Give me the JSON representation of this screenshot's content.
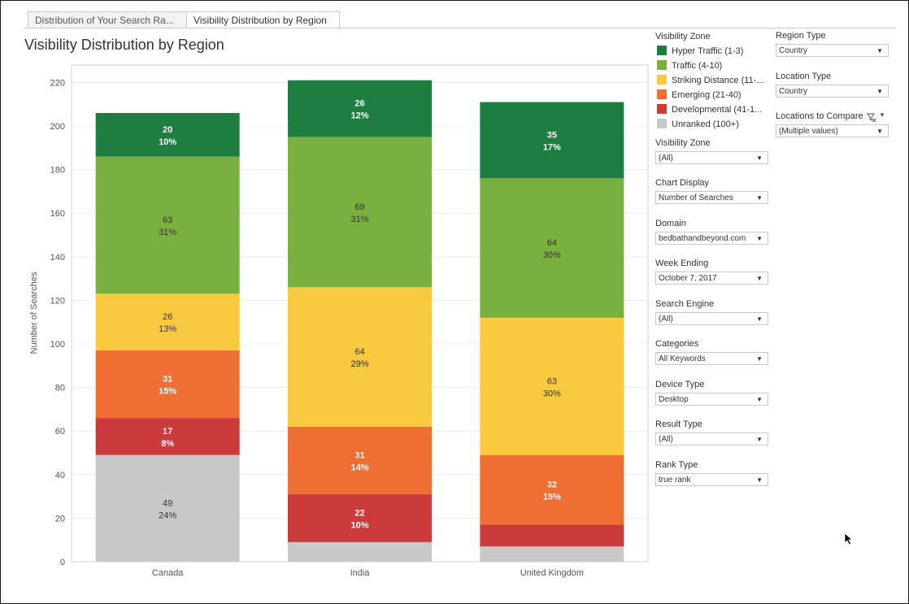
{
  "tabs": [
    {
      "label": "Distribution of Your Search Ra..."
    },
    {
      "label": "Visibility Distribution by Region"
    }
  ],
  "chart_title": "Visibility Distribution by Region",
  "legend": {
    "title": "Visibility Zone",
    "items": [
      {
        "label": "Hyper Traffic (1-3)",
        "color": "#1e7d41"
      },
      {
        "label": "Traffic (4-10)",
        "color": "#7ab040"
      },
      {
        "label": "Striking Distance (11-...",
        "color": "#f9c940"
      },
      {
        "label": "Emerging (21-40)",
        "color": "#ee6e33"
      },
      {
        "label": "Developmental (41-1...",
        "color": "#cc3b3b"
      },
      {
        "label": "Unranked (100+)",
        "color": "#c8c8c8"
      }
    ]
  },
  "filters": {
    "visibility_zone": {
      "label": "Visibility Zone",
      "value": "(All)"
    },
    "chart_display": {
      "label": "Chart Display",
      "value": "Number of Searches"
    },
    "domain": {
      "label": "Domain",
      "value": "bedbathandbeyond.com"
    },
    "week_ending": {
      "label": "Week Ending",
      "value": "October 7, 2017"
    },
    "search_engine": {
      "label": "Search Engine",
      "value": "(All)"
    },
    "categories": {
      "label": "Categories",
      "value": "All Keywords"
    },
    "device_type": {
      "label": "Device Type",
      "value": "Desktop"
    },
    "result_type": {
      "label": "Result Type",
      "value": "(All)"
    },
    "rank_type": {
      "label": "Rank Type",
      "value": "true rank"
    },
    "region_type": {
      "label": "Region Type",
      "value": "Country"
    },
    "location_type": {
      "label": "Location Type",
      "value": "Country"
    },
    "locations_compare": {
      "label": "Locations to Compare",
      "value": "(Multiple values)"
    }
  },
  "chart_data": {
    "type": "bar",
    "stacked": true,
    "title": "Visibility Distribution by Region",
    "xlabel": "",
    "ylabel": "Number of Searches",
    "ylim": [
      0,
      228
    ],
    "yticks": [
      0,
      20,
      40,
      60,
      80,
      100,
      120,
      140,
      160,
      180,
      200,
      220
    ],
    "categories": [
      "Canada",
      "India",
      "United Kingdom"
    ],
    "series": [
      {
        "name": "Unranked (100+)",
        "color": "#c8c8c8",
        "labelColor": "#333333",
        "values": [
          49,
          9,
          7
        ],
        "percents": [
          "24%",
          "",
          ""
        ]
      },
      {
        "name": "Developmental (41-100)",
        "color": "#cc3b3b",
        "labelColor": "#ffffff",
        "values": [
          17,
          22,
          10
        ],
        "percents": [
          "8%",
          "10%",
          ""
        ]
      },
      {
        "name": "Emerging (21-40)",
        "color": "#ee6e33",
        "labelColor": "#ffffff",
        "values": [
          31,
          31,
          32
        ],
        "percents": [
          "15%",
          "14%",
          "15%"
        ]
      },
      {
        "name": "Striking Distance (11-20)",
        "color": "#f9c940",
        "labelColor": "#333333",
        "values": [
          26,
          64,
          63
        ],
        "percents": [
          "13%",
          "29%",
          "30%"
        ]
      },
      {
        "name": "Traffic (4-10)",
        "color": "#7ab040",
        "labelColor": "#333333",
        "values": [
          63,
          69,
          64
        ],
        "percents": [
          "31%",
          "31%",
          "30%"
        ]
      },
      {
        "name": "Hyper Traffic (1-3)",
        "color": "#1e7d41",
        "labelColor": "#ffffff",
        "values": [
          20,
          26,
          35
        ],
        "percents": [
          "10%",
          "12%",
          "17%"
        ]
      }
    ]
  }
}
